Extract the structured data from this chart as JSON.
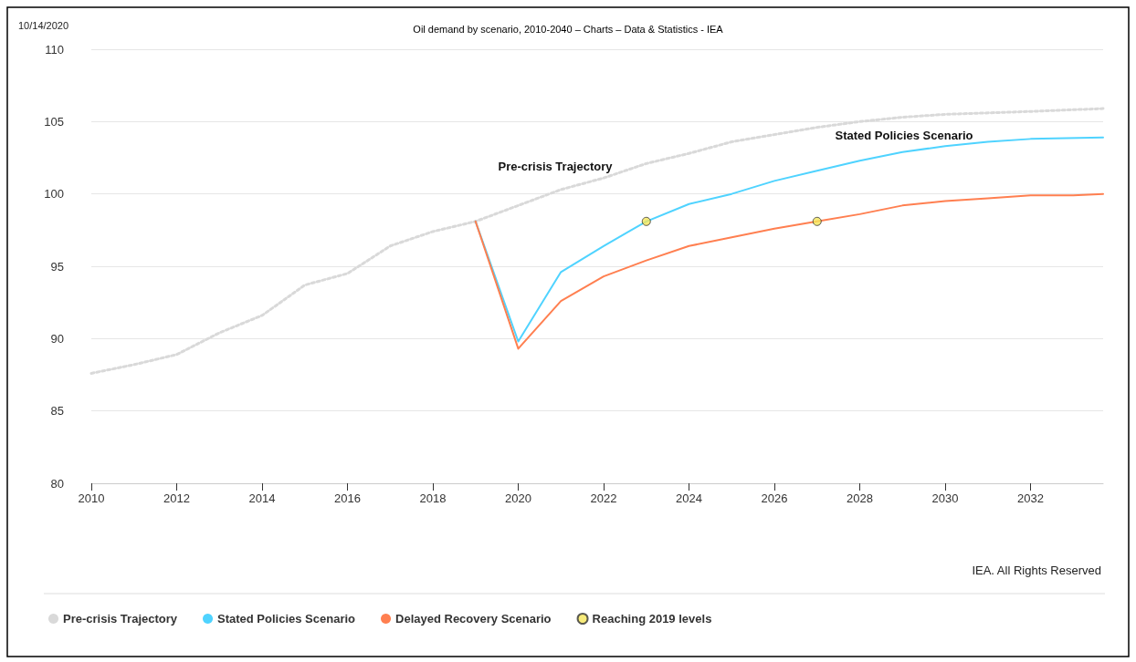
{
  "chart_data": {
    "type": "line",
    "title": "Oil demand by scenario, 2010-2040 – Charts – Data & Statistics - IEA",
    "xlim": [
      2010,
      2033.7
    ],
    "xticks": [
      2010,
      2012,
      2014,
      2016,
      2018,
      2020,
      2022,
      2024,
      2026,
      2028,
      2030,
      2032
    ],
    "ylim": [
      80,
      110
    ],
    "yticks": [
      80,
      85,
      90,
      95,
      100,
      105,
      110
    ],
    "grid": "y",
    "legend": "bottom",
    "marker": "none",
    "series": [
      {
        "name": "Pre-crisis Trajectory",
        "color": "#d9d9d9",
        "line_style": "dotted",
        "x": [
          2010,
          2011,
          2012,
          2013,
          2014,
          2015,
          2016,
          2017,
          2018,
          2019,
          2020,
          2021,
          2022,
          2023,
          2024,
          2025,
          2026,
          2027,
          2028,
          2029,
          2030,
          2032,
          2033.7
        ],
        "values": [
          87.6,
          88.2,
          88.9,
          90.4,
          91.6,
          93.7,
          94.5,
          96.4,
          97.4,
          98.1,
          99.2,
          100.3,
          101.1,
          102.1,
          102.8,
          103.6,
          104.1,
          104.6,
          105.0,
          105.3,
          105.5,
          105.7,
          105.9
        ]
      },
      {
        "name": "Stated Policies Scenario",
        "color": "#4fd3ff",
        "line_style": "solid",
        "x": [
          2019,
          2020,
          2021,
          2022,
          2023,
          2024,
          2025,
          2026,
          2027,
          2028,
          2029,
          2030,
          2031,
          2032,
          2033.7
        ],
        "values": [
          98.1,
          89.8,
          94.6,
          96.4,
          98.1,
          99.3,
          100.0,
          100.9,
          101.6,
          102.3,
          102.9,
          103.3,
          103.6,
          103.8,
          103.9
        ]
      },
      {
        "name": "Delayed Recovery Scenario",
        "color": "#ff7f50",
        "line_style": "solid",
        "x": [
          2019,
          2020,
          2021,
          2022,
          2023,
          2024,
          2025,
          2026,
          2027,
          2028,
          2029,
          2030,
          2031,
          2032,
          2033,
          2033.7
        ],
        "values": [
          98.1,
          89.3,
          92.6,
          94.3,
          95.4,
          96.4,
          97.0,
          97.6,
          98.1,
          98.6,
          99.2,
          99.5,
          99.7,
          99.9,
          99.9,
          100.0
        ]
      },
      {
        "name": "Reaching 2019 levels",
        "type": "scatter",
        "marker": "circle",
        "color": "#f5e65a",
        "x": [
          2023,
          2027
        ],
        "values": [
          98.1,
          98.1
        ]
      }
    ],
    "annotations": [
      "Pre-crisis Trajectory",
      "Stated Policies Scenario",
      "10/14/2020",
      "IEA. All Rights Reserved"
    ]
  }
}
